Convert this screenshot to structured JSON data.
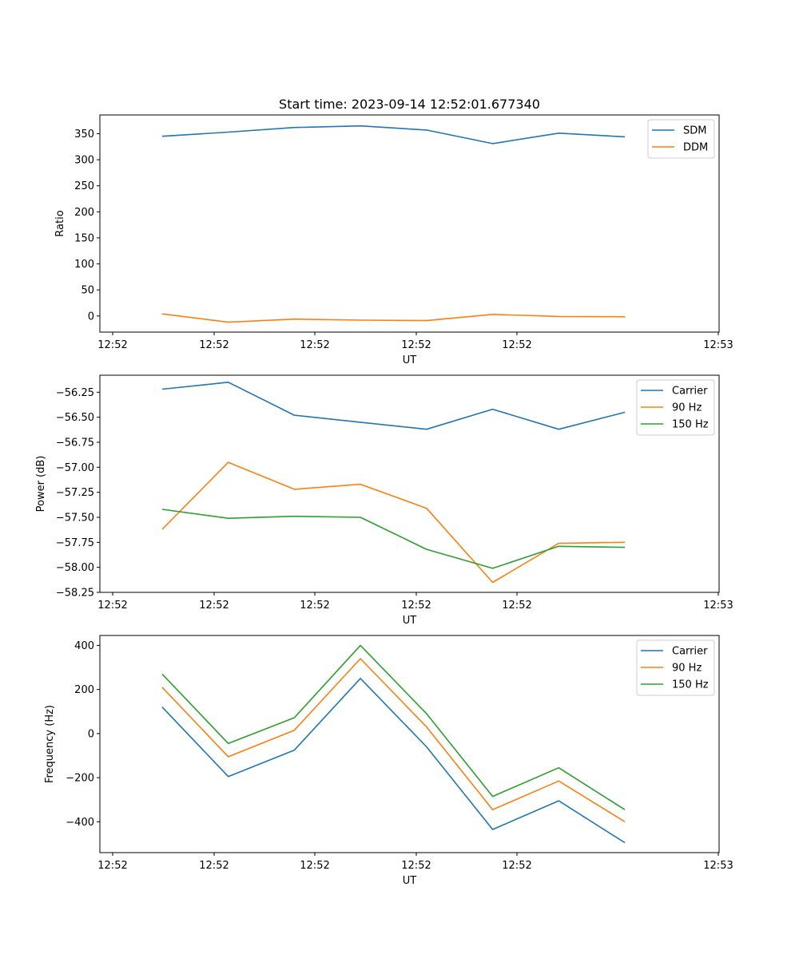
{
  "figure_title": "Start time: 2023-09-14 12:52:01.677340",
  "chart_data": [
    {
      "type": "line",
      "title": "Start time: 2023-09-14 12:52:01.677340",
      "xlabel": "UT",
      "ylabel": "Ratio",
      "x_tick_labels": [
        "12:52",
        "12:52",
        "12:52",
        "12:52",
        "12:52",
        "12:53"
      ],
      "ylim": [
        -31,
        386
      ],
      "y_ticks": [
        0,
        50,
        100,
        150,
        200,
        250,
        300,
        350
      ],
      "y_tick_labels": [
        "0",
        "50",
        "100",
        "150",
        "200",
        "250",
        "300",
        "350"
      ],
      "legend_position": "upper-right",
      "series": [
        {
          "name": "SDM",
          "color": "#1f77b4",
          "values": [
            345,
            353,
            362,
            365,
            357,
            331,
            351,
            344
          ]
        },
        {
          "name": "DDM",
          "color": "#ff7f0e",
          "values": [
            4,
            -12,
            -6,
            -8,
            -9,
            3,
            -1,
            -1.5
          ]
        }
      ]
    },
    {
      "type": "line",
      "title": "",
      "xlabel": "UT",
      "ylabel": "Power (dB)",
      "x_tick_labels": [
        "12:52",
        "12:52",
        "12:52",
        "12:52",
        "12:52",
        "12:53"
      ],
      "ylim": [
        -58.25,
        -56.08
      ],
      "y_ticks": [
        -58.25,
        -58.0,
        -57.75,
        -57.5,
        -57.25,
        -57.0,
        -56.75,
        -56.5,
        -56.25
      ],
      "y_tick_labels": [
        "−58.25",
        "−58.00",
        "−57.75",
        "−57.50",
        "−57.25",
        "−57.00",
        "−56.75",
        "−56.50",
        "−56.25"
      ],
      "legend_position": "upper-right",
      "series": [
        {
          "name": "Carrier",
          "color": "#1f77b4",
          "values": [
            -56.22,
            -56.15,
            -56.48,
            -56.55,
            -56.62,
            -56.42,
            -56.62,
            -56.45
          ]
        },
        {
          "name": "90 Hz",
          "color": "#ff7f0e",
          "values": [
            -57.62,
            -56.95,
            -57.22,
            -57.17,
            -57.41,
            -58.15,
            -57.76,
            -57.75
          ]
        },
        {
          "name": "150 Hz",
          "color": "#2ca02c",
          "values": [
            -57.42,
            -57.51,
            -57.49,
            -57.5,
            -57.82,
            -58.01,
            -57.79,
            -57.8
          ]
        }
      ]
    },
    {
      "type": "line",
      "title": "",
      "xlabel": "UT",
      "ylabel": "Frequency (Hz)",
      "x_tick_labels": [
        "12:52",
        "12:52",
        "12:52",
        "12:52",
        "12:52",
        "12:53"
      ],
      "ylim": [
        -540,
        445
      ],
      "y_ticks": [
        -400,
        -200,
        0,
        200,
        400
      ],
      "y_tick_labels": [
        "−400",
        "−200",
        "0",
        "200",
        "400"
      ],
      "legend_position": "upper-right",
      "series": [
        {
          "name": "Carrier",
          "color": "#1f77b4",
          "values": [
            120,
            -195,
            -75,
            250,
            -60,
            -435,
            -305,
            -495
          ]
        },
        {
          "name": "90 Hz",
          "color": "#ff7f0e",
          "values": [
            210,
            -105,
            15,
            340,
            30,
            -345,
            -215,
            -400
          ]
        },
        {
          "name": "150 Hz",
          "color": "#2ca02c",
          "values": [
            270,
            -45,
            72,
            400,
            90,
            -285,
            -155,
            -345
          ]
        }
      ]
    }
  ]
}
